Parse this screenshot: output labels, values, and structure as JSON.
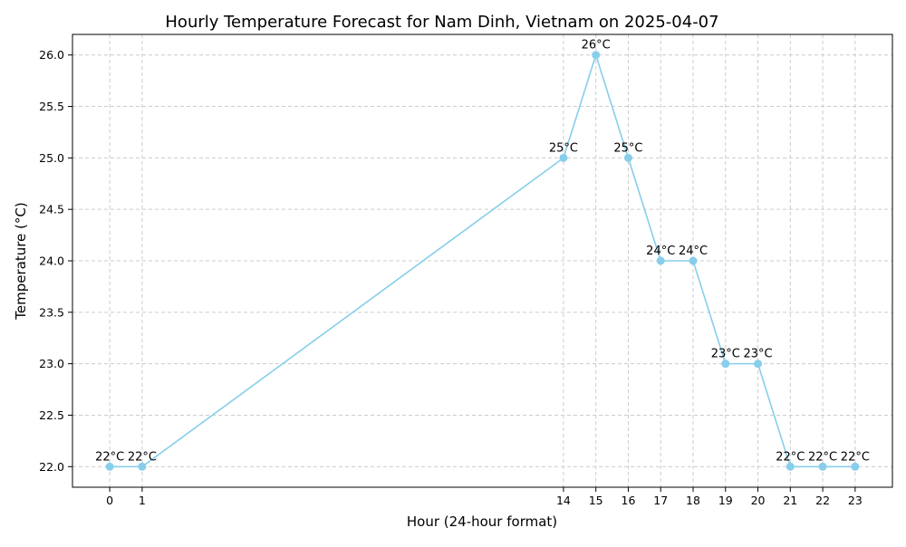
{
  "chart_data": {
    "type": "line",
    "title": "Hourly Temperature Forecast for Nam Dinh, Vietnam on 2025-04-07",
    "xlabel": "Hour (24-hour format)",
    "ylabel": "Temperature (°C)",
    "x": [
      0,
      1,
      14,
      15,
      16,
      17,
      18,
      19,
      20,
      21,
      22,
      23
    ],
    "xticks": [
      "0",
      "1",
      "14",
      "15",
      "16",
      "17",
      "18",
      "19",
      "20",
      "21",
      "22",
      "23"
    ],
    "series": [
      {
        "values": [
          22,
          22,
          25,
          26,
          25,
          24,
          24,
          23,
          23,
          22,
          22,
          22
        ],
        "color": "#87CEEB",
        "marker": "circle"
      }
    ],
    "data_labels": [
      "22°C",
      "22°C",
      "25°C",
      "26°C",
      "25°C",
      "24°C",
      "24°C",
      "23°C",
      "23°C",
      "22°C",
      "22°C",
      "22°C"
    ],
    "ylim": [
      21.8,
      26.2
    ],
    "yticks": [
      "22.0",
      "22.5",
      "23.0",
      "23.5",
      "24.0",
      "24.5",
      "25.0",
      "25.5",
      "26.0"
    ],
    "ytick_values": [
      22.0,
      22.5,
      23.0,
      23.5,
      24.0,
      24.5,
      25.0,
      25.5,
      26.0
    ],
    "xlim": [
      -1.15,
      24.15
    ],
    "grid": true,
    "legend": "none"
  }
}
